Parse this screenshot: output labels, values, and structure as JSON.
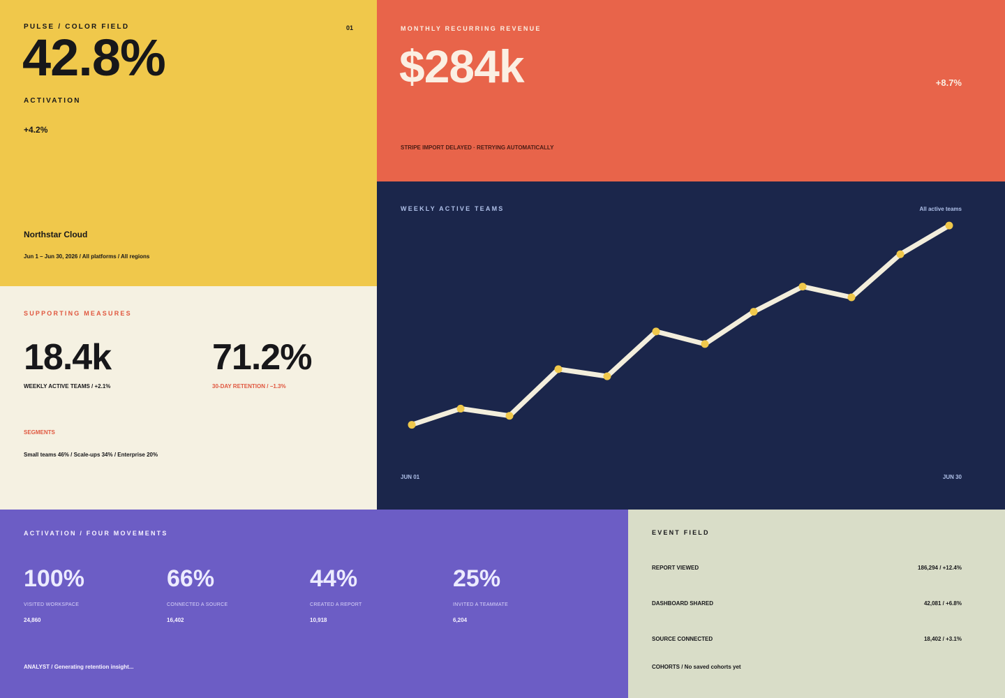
{
  "pulse": {
    "eyebrow": "PULSE / COLOR FIELD",
    "number": "01",
    "value": "42.8%",
    "label": "ACTIVATION",
    "delta": "+4.2%",
    "org": "Northstar Cloud",
    "range": "Jun 1 – Jun 30, 2026 / All platforms / All regions"
  },
  "mrr": {
    "eyebrow": "MONTHLY RECURRING REVENUE",
    "value": "$284k",
    "delta": "+8.7%",
    "status": "STRIPE IMPORT DELAYED · RETRYING AUTOMATICALLY"
  },
  "chart": {
    "eyebrow": "WEEKLY ACTIVE TEAMS",
    "filter": "All active teams",
    "x_start": "JUN 01",
    "x_end": "JUN 30"
  },
  "chart_data": {
    "type": "line",
    "title": "WEEKLY ACTIVE TEAMS",
    "x_ticks": [
      "JUN 01",
      "JUN 30"
    ],
    "values": [
      2,
      2.9,
      2.5,
      5.1,
      4.7,
      7.2,
      6.5,
      8.3,
      9.7,
      9.1,
      11.5,
      13.1
    ],
    "ylim": [
      0,
      14
    ],
    "grid": false,
    "colors": {
      "line": "#F3EEDC",
      "marker": "#F0C84B",
      "background": "#1B264B"
    }
  },
  "supporting": {
    "eyebrow": "SUPPORTING MEASURES",
    "m1_value": "18.4k",
    "m1_label": "WEEKLY ACTIVE TEAMS / +2.1%",
    "m2_value": "71.2%",
    "m2_label": "30-DAY RETENTION / −1.3%",
    "segments_heading": "SEGMENTS",
    "segments_text": "Small teams 46% / Scale-ups 34% / Enterprise 20%"
  },
  "activation": {
    "eyebrow": "ACTIVATION / FOUR MOVEMENTS",
    "steps": [
      {
        "pct": "100%",
        "label": "VISITED WORKSPACE",
        "count": "24,860"
      },
      {
        "pct": "66%",
        "label": "CONNECTED A SOURCE",
        "count": "16,402"
      },
      {
        "pct": "44%",
        "label": "CREATED A REPORT",
        "count": "10,918"
      },
      {
        "pct": "25%",
        "label": "INVITED A TEAMMATE",
        "count": "6,204"
      }
    ],
    "analyst": "ANALYST / Generating retention insight..."
  },
  "events": {
    "eyebrow": "EVENT FIELD",
    "rows": [
      {
        "name": "REPORT VIEWED",
        "value": "186,294 / +12.4%"
      },
      {
        "name": "DASHBOARD SHARED",
        "value": "42,081 / +6.8%"
      },
      {
        "name": "SOURCE CONNECTED",
        "value": "18,402 / +3.1%"
      }
    ],
    "cohorts": "COHORTS / No saved cohorts yet"
  },
  "colors": {
    "yellow": "#F0C84B",
    "red": "#E8644A",
    "navy": "#1B264B",
    "cream": "#F5F1E2",
    "purple": "#6C5DC5",
    "sage": "#D9DDC8",
    "accent_red": "#E0573F"
  }
}
